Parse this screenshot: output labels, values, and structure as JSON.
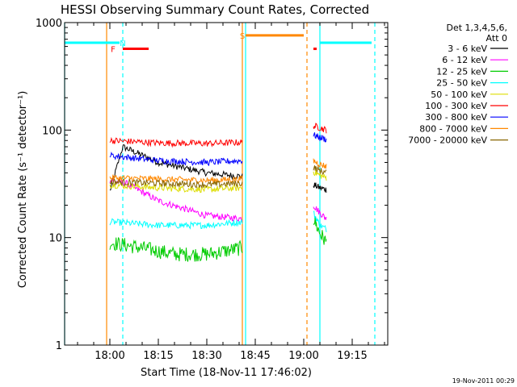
{
  "chart_data": {
    "type": "line",
    "title": "HESSI Observing Summary Count Rates, Corrected",
    "xlabel": "Start Time (18-Nov-11 17:46:02)",
    "ylabel": "Corrected Count Rate (s⁻¹ detector⁻¹)",
    "y_scale": "log",
    "ylim": [
      1,
      1000
    ],
    "xlim": [
      "17:46",
      "19:26"
    ],
    "x_ticks": [
      "18:00",
      "18:15",
      "18:30",
      "18:45",
      "19:00",
      "19:15"
    ],
    "y_ticks": [
      "1",
      "10",
      "100",
      "1000"
    ],
    "footer": "19-Nov-2011 00:29",
    "legend": {
      "title_lines": [
        "Det 1,3,4,5,6,",
        "Att 0"
      ],
      "placement": "right"
    },
    "series": [
      {
        "name": "3 - 6 keV",
        "color": "#000000",
        "segment1": {
          "x": [
            "18:00",
            "18:04",
            "18:15",
            "18:30",
            "18:41"
          ],
          "y": [
            27,
            70,
            50,
            40,
            37
          ]
        },
        "segment2": {
          "x": [
            "19:03",
            "19:05",
            "19:07"
          ],
          "y": [
            31,
            29,
            28
          ]
        }
      },
      {
        "name": "6 - 12 keV",
        "color": "#ff00ff",
        "segment1": {
          "x": [
            "18:00",
            "18:05",
            "18:15",
            "18:30",
            "18:41"
          ],
          "y": [
            34,
            32,
            22,
            16,
            15
          ]
        },
        "segment2": {
          "x": [
            "19:03",
            "19:05",
            "19:07"
          ],
          "y": [
            20,
            17,
            15
          ]
        }
      },
      {
        "name": "12 - 25 keV",
        "color": "#00cc00",
        "segment1": {
          "x": [
            "18:00",
            "18:10",
            "18:20",
            "18:30",
            "18:41"
          ],
          "y": [
            9,
            8,
            7,
            7,
            8
          ]
        },
        "segment2": {
          "x": [
            "19:03",
            "19:05",
            "19:07"
          ],
          "y": [
            15,
            11,
            9
          ]
        }
      },
      {
        "name": "25 - 50 keV",
        "color": "#00ffff",
        "segment1": {
          "x": [
            "18:00",
            "18:15",
            "18:30",
            "18:41"
          ],
          "y": [
            14,
            13,
            13,
            14
          ]
        },
        "segment2": {
          "x": [
            "19:03",
            "19:05",
            "19:07"
          ],
          "y": [
            17,
            13,
            12
          ]
        }
      },
      {
        "name": "50 - 100 keV",
        "color": "#dddd00",
        "segment1": {
          "x": [
            "18:00",
            "18:15",
            "18:30",
            "18:41"
          ],
          "y": [
            31,
            29,
            28,
            29
          ]
        },
        "segment2": {
          "x": [
            "19:03",
            "19:05",
            "19:07"
          ],
          "y": [
            41,
            38,
            36
          ]
        }
      },
      {
        "name": "100 - 300 keV",
        "color": "#ff0000",
        "segment1": {
          "x": [
            "18:00",
            "18:15",
            "18:30",
            "18:41"
          ],
          "y": [
            80,
            76,
            75,
            77
          ]
        },
        "segment2": {
          "x": [
            "19:03",
            "19:05",
            "19:07"
          ],
          "y": [
            110,
            105,
            100
          ]
        }
      },
      {
        "name": "300 - 800 keV",
        "color": "#0000ff",
        "segment1": {
          "x": [
            "18:00",
            "18:15",
            "18:30",
            "18:41"
          ],
          "y": [
            58,
            52,
            50,
            52
          ]
        },
        "segment2": {
          "x": [
            "19:03",
            "19:05",
            "19:07"
          ],
          "y": [
            90,
            85,
            82
          ]
        }
      },
      {
        "name": "800 - 7000 keV",
        "color": "#ff8800",
        "segment1": {
          "x": [
            "18:00",
            "18:15",
            "18:30",
            "18:41"
          ],
          "y": [
            36,
            35,
            34,
            35
          ]
        },
        "segment2": {
          "x": [
            "19:03",
            "19:05",
            "19:07"
          ],
          "y": [
            52,
            48,
            46
          ]
        }
      },
      {
        "name": "7000 - 20000 keV",
        "color": "#886600",
        "segment1": {
          "x": [
            "18:00",
            "18:15",
            "18:30",
            "18:41"
          ],
          "y": [
            33,
            32,
            31,
            32
          ]
        },
        "segment2": {
          "x": [
            "19:03",
            "19:05",
            "19:07"
          ],
          "y": [
            45,
            42,
            40
          ]
        }
      }
    ],
    "state_bars": [
      {
        "label": "N",
        "color": "#00ffff",
        "label_at": "18:04",
        "y": 650,
        "spans": [
          [
            "17:46",
            "18:03"
          ],
          [
            "19:05",
            "19:21"
          ]
        ]
      },
      {
        "label": "F",
        "color": "#ff0000",
        "label_at": "18:01",
        "y": 570,
        "spans": [
          [
            "18:04",
            "18:12"
          ],
          [
            "19:03",
            "19:04"
          ]
        ]
      },
      {
        "label": "S",
        "color": "#ff8800",
        "label_at": "18:41",
        "y": 760,
        "spans": [
          [
            "18:42",
            "19:00"
          ]
        ]
      }
    ],
    "vertical_lines": [
      {
        "x": "17:46",
        "color": "#00ffff",
        "style": "solid"
      },
      {
        "x": "18:04",
        "color": "#00ffff",
        "style": "dashed"
      },
      {
        "x": "17:59",
        "color": "#ff8800",
        "style": "solid"
      },
      {
        "x": "18:41",
        "color": "#ff8800",
        "style": "solid"
      },
      {
        "x": "18:42",
        "color": "#00ffff",
        "style": "solid"
      },
      {
        "x": "19:01",
        "color": "#ff8800",
        "style": "dashed"
      },
      {
        "x": "19:05",
        "color": "#00ffff",
        "style": "solid"
      },
      {
        "x": "19:22",
        "color": "#00ffff",
        "style": "dashed"
      }
    ],
    "grid": false
  }
}
